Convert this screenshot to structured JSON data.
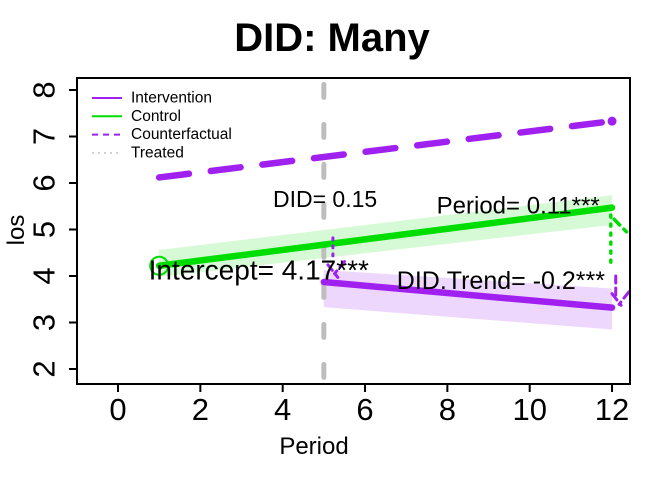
{
  "title": "DID: Many",
  "colors": {
    "purple": "#A020F0",
    "green": "#00DD00",
    "gray_line": "#BEBEBE",
    "legend_gray": "#C8C8C8",
    "green_band": "rgba(0,220,0,0.16)",
    "purple_band": "rgba(160,32,240,0.18)",
    "axis": "#000000"
  },
  "chart_data": {
    "type": "line",
    "title": "DID: Many",
    "xlabel": "Period",
    "ylabel": "los",
    "xlim": [
      -1,
      12.5
    ],
    "ylim": [
      1.7,
      8.2
    ],
    "grid": false,
    "x_ticks": [
      "0",
      "2",
      "4",
      "6",
      "8",
      "10",
      "12"
    ],
    "x_tick_values": [
      0,
      2,
      4,
      6,
      8,
      10,
      12
    ],
    "y_ticks": [
      "2",
      "3",
      "4",
      "5",
      "6",
      "7",
      "8"
    ],
    "y_tick_values": [
      2,
      3,
      4,
      5,
      6,
      7,
      8
    ],
    "treatment_vline": {
      "x": 5,
      "y_top": 8.12,
      "y_bottom": 1.73
    },
    "series": [
      {
        "name": "Counterfactual",
        "x": [
          1,
          12
        ],
        "y": [
          6.12,
          7.33
        ],
        "color": "purple",
        "style": "dashed",
        "end_dot": true
      },
      {
        "name": "Control",
        "x": [
          1,
          12
        ],
        "y": [
          4.22,
          5.47
        ],
        "color": "green",
        "style": "solid",
        "start_circle": true,
        "band": {
          "upper": [
            4.56,
            5.74
          ],
          "lower": [
            3.98,
            5.1
          ]
        }
      },
      {
        "name": "Intervention",
        "x": [
          5,
          12
        ],
        "y": [
          3.87,
          3.32
        ],
        "color": "purple",
        "style": "solid",
        "band": {
          "upper": [
            4.13,
            3.73
          ],
          "lower": [
            3.33,
            2.85
          ]
        }
      }
    ],
    "legend": {
      "position": "top-left",
      "items": [
        {
          "label": "Intervention",
          "color": "purple",
          "style": "solid"
        },
        {
          "label": "Control",
          "color": "green",
          "style": "solid"
        },
        {
          "label": "Counterfactual",
          "color": "purple",
          "style": "dashed"
        },
        {
          "label": "Treated",
          "color": "legend_gray",
          "style": "dotted"
        }
      ]
    },
    "annotations": [
      {
        "id": "did",
        "text": "DID= 0.15",
        "x": 5.03,
        "y": 5.66,
        "size": 23
      },
      {
        "id": "period",
        "text": "Period= 0.11***",
        "x": 9.72,
        "y": 5.51,
        "size": 24
      },
      {
        "id": "intercept",
        "text": "Intercept= 4.17***",
        "x": 3.42,
        "y": 4.13,
        "size": 28
      },
      {
        "id": "did-trend",
        "text": "DID.Trend= -0.2***",
        "x": 9.3,
        "y": 3.89,
        "size": 25
      }
    ],
    "effect_markers": [
      {
        "color": "purple",
        "width": 3,
        "dash": "2 6",
        "x1": 5.22,
        "y1": 4.82,
        "x2": 5.22,
        "y2": 4.39
      },
      {
        "color": "purple",
        "width": 3,
        "dash": "7 5",
        "x1": 5.1,
        "y1": 4.24,
        "x2": 5.34,
        "y2": 3.97
      },
      {
        "color": "purple",
        "width": 3,
        "dash": "7 5",
        "x1": 5.5,
        "y1": 4.31,
        "x2": 5.26,
        "y2": 4.05
      },
      {
        "color": "green",
        "width": 3.5,
        "dash": "2 7",
        "x1": 11.97,
        "y1": 5.31,
        "x2": 11.97,
        "y2": 4.15
      },
      {
        "color": "green",
        "width": 3.5,
        "dash": "8 6",
        "x1": 12.05,
        "y1": 5.22,
        "x2": 12.35,
        "y2": 4.95
      },
      {
        "color": "purple",
        "width": 3,
        "dash": "7 5",
        "x1": 12.09,
        "y1": 4.0,
        "x2": 12.09,
        "y2": 3.55
      },
      {
        "color": "purple",
        "width": 3,
        "dash": "8 5",
        "x1": 12.0,
        "y1": 3.62,
        "x2": 12.22,
        "y2": 3.37
      },
      {
        "color": "purple",
        "width": 3,
        "dash": "8 5",
        "x1": 12.41,
        "y1": 3.66,
        "x2": 12.17,
        "y2": 3.39
      }
    ]
  }
}
